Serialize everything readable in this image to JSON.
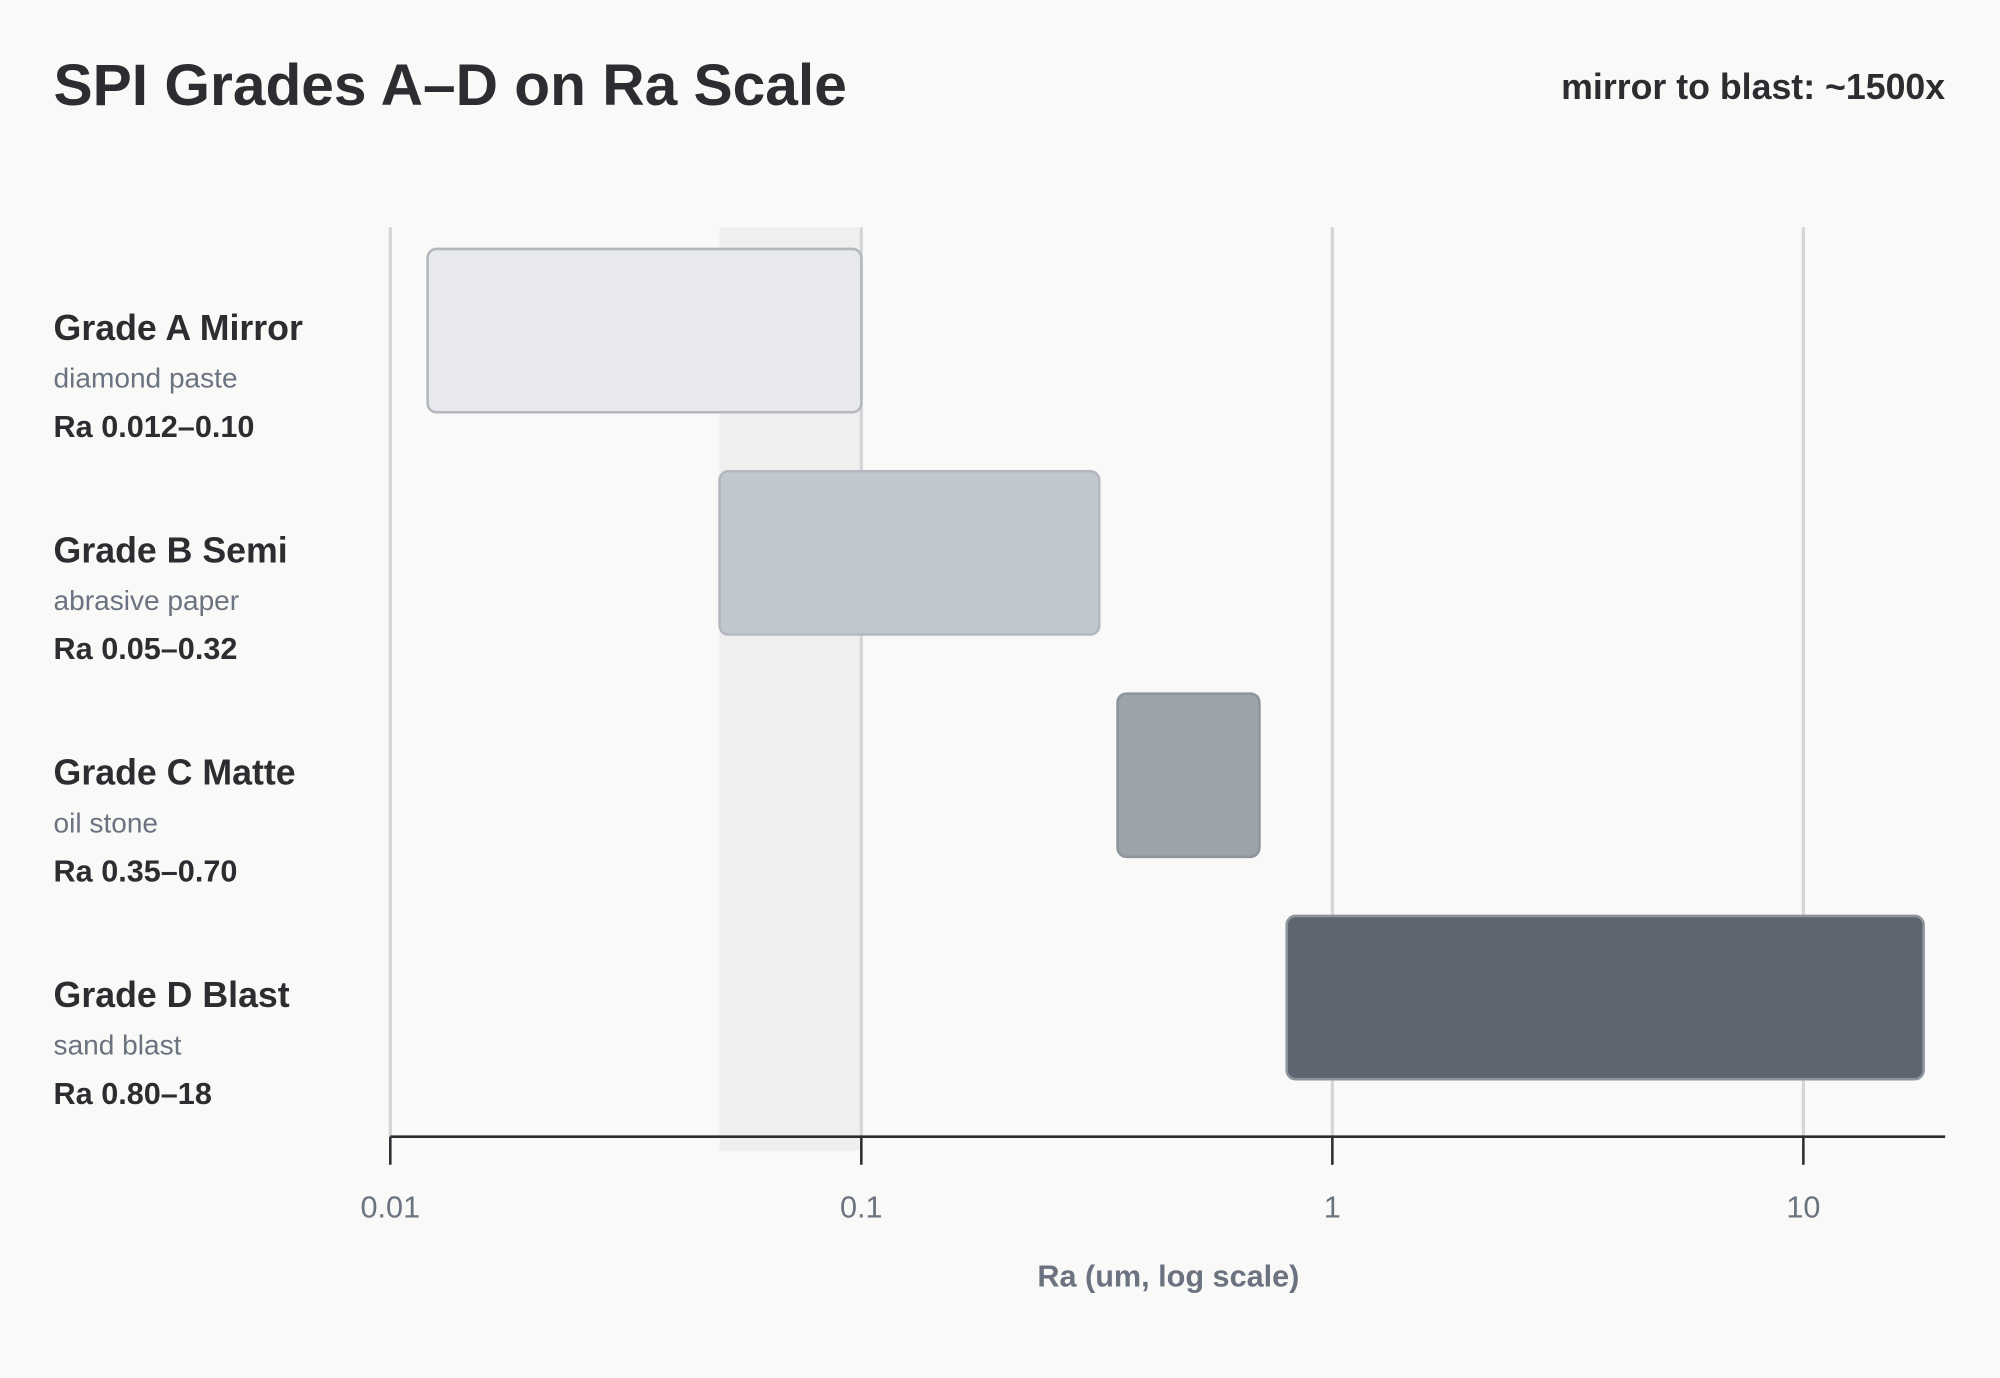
{
  "chart_data": {
    "type": "range_bar",
    "title": "SPI Grades A–D on Ra Scale",
    "annotation": "mirror to blast: ~1500x",
    "x_label": "Ra (um, log scale)",
    "categories": [
      "Grade A Mirror",
      "Grade B Semi",
      "Grade C Matte",
      "Grade D Blast"
    ],
    "subtitles": [
      "diamond paste",
      "abrasive paper",
      "oil stone",
      "sand blast"
    ],
    "values": [
      [
        0.012,
        0.1
      ],
      [
        0.05,
        0.32
      ],
      [
        0.35,
        0.7
      ],
      [
        0.8,
        18
      ]
    ],
    "value_labels": [
      "Ra 0.012–0.10",
      "Ra 0.05–0.32",
      "Ra 0.35–0.70",
      "Ra 0.80–18"
    ],
    "colors": [
      "#e8e9ec",
      "#c1c7cf",
      "#9ca3ab",
      "#5f6570"
    ],
    "xlim": [
      0.01,
      20
    ],
    "xticks": [
      0.01,
      0.1,
      1,
      10
    ],
    "log_x": true,
    "grid": true
  }
}
